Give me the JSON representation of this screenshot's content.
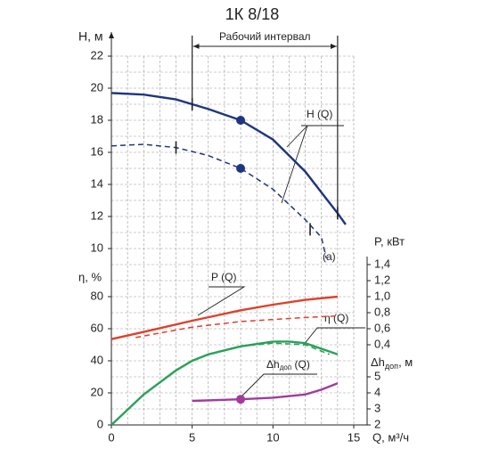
{
  "chart_data": {
    "type": "line",
    "title": "1К 8/18",
    "xlabel": "Q, м³/ч",
    "xlim": [
      0,
      15
    ],
    "xticks": [
      0,
      5,
      10,
      15
    ],
    "axes": {
      "H": {
        "label": "Н, м",
        "ylim": [
          10,
          22
        ],
        "yticks": [
          10,
          12,
          14,
          16,
          18,
          20,
          22
        ]
      },
      "eta": {
        "label": "η, %",
        "ylim": [
          0,
          80
        ],
        "yticks": [
          0,
          20,
          40,
          60,
          80
        ]
      },
      "P": {
        "label": "P, кВт",
        "ylim": [
          0.4,
          1.4
        ],
        "yticks": [
          {
            "value": 0.4,
            "label": "0,4"
          },
          {
            "value": 0.6,
            "label": "0,6"
          },
          {
            "value": 0.8,
            "label": "0,8"
          },
          {
            "value": 1.0,
            "label": "1,0"
          },
          {
            "value": 1.2,
            "label": "1,2"
          },
          {
            "value": 1.4,
            "label": "1,4"
          }
        ]
      },
      "dh": {
        "label": "Δh",
        "label_sub": "доп",
        "label_unit": ", м",
        "ylim": [
          2,
          5
        ],
        "yticks": [
          2,
          3,
          4,
          5
        ]
      }
    },
    "series": [
      {
        "axis": "H",
        "color": "#1f3580",
        "dashed": false,
        "x": [
          0,
          2,
          4,
          5,
          6,
          8,
          10,
          12,
          13,
          14,
          14.5
        ],
        "values": [
          19.7,
          19.6,
          19.3,
          19.0,
          18.7,
          18.0,
          16.8,
          14.8,
          13.5,
          12.2,
          11.5
        ]
      },
      {
        "axis": "H",
        "color": "#1f3580",
        "dashed": true,
        "x": [
          0,
          2,
          4,
          6,
          8,
          10,
          12,
          13,
          13.3
        ],
        "values": [
          16.4,
          16.5,
          16.3,
          15.8,
          15.0,
          13.7,
          11.8,
          10.7,
          9.4
        ]
      },
      {
        "axis": "P",
        "color": "#e0402a",
        "dashed": false,
        "x": [
          0,
          2,
          5,
          8,
          10,
          12,
          14
        ],
        "values": [
          0.47,
          0.56,
          0.7,
          0.83,
          0.9,
          0.96,
          1.0
        ]
      },
      {
        "axis": "P",
        "color": "#e0402a",
        "dashed": true,
        "x": [
          1.5,
          2,
          5,
          8,
          12,
          14
        ],
        "values": [
          0.49,
          0.51,
          0.62,
          0.69,
          0.74,
          0.76
        ]
      },
      {
        "axis": "eta",
        "color": "#2aa05a",
        "dashed": false,
        "x": [
          0,
          2,
          4,
          5,
          6,
          8,
          10,
          11,
          12,
          14
        ],
        "values": [
          0,
          19,
          34,
          40,
          44,
          49,
          52,
          52,
          51,
          44
        ]
      },
      {
        "axis": "eta",
        "color": "#2aa05a",
        "dashed": true,
        "x": [
          8,
          10,
          12,
          13.5
        ],
        "values": [
          49,
          51,
          50,
          44
        ]
      },
      {
        "axis": "dh",
        "color": "#a23b9c",
        "dashed": false,
        "x": [
          5,
          8,
          10,
          12,
          13,
          14
        ],
        "values": [
          3.5,
          3.6,
          3.7,
          3.9,
          4.2,
          4.6
        ]
      }
    ],
    "points": [
      {
        "axis": "H",
        "color": "#1f3580",
        "x": 8,
        "y": 18.0
      },
      {
        "axis": "H",
        "color": "#1f3580",
        "x": 8,
        "y": 15.0
      },
      {
        "axis": "dh",
        "color": "#a23b9c",
        "x": 8,
        "y": 3.6
      }
    ],
    "curve_ticks": [
      {
        "axis": "H",
        "x": 5,
        "y": 19.0
      },
      {
        "axis": "H",
        "x": 14,
        "y": 12.2
      },
      {
        "axis": "H",
        "x": 4,
        "y": 16.3
      },
      {
        "axis": "H",
        "x": 12.3,
        "y": 11.2
      }
    ],
    "interval": {
      "label": "Рабочий интервал",
      "from": 5,
      "to": 14
    },
    "annotations": {
      "hq": "H (Q)",
      "a": "(a)",
      "pq": "P (Q)",
      "etaq": "η (Q)",
      "dhq_main": "Δh",
      "dhq_sub": "доп",
      "dhq_tail": " (Q)"
    }
  }
}
